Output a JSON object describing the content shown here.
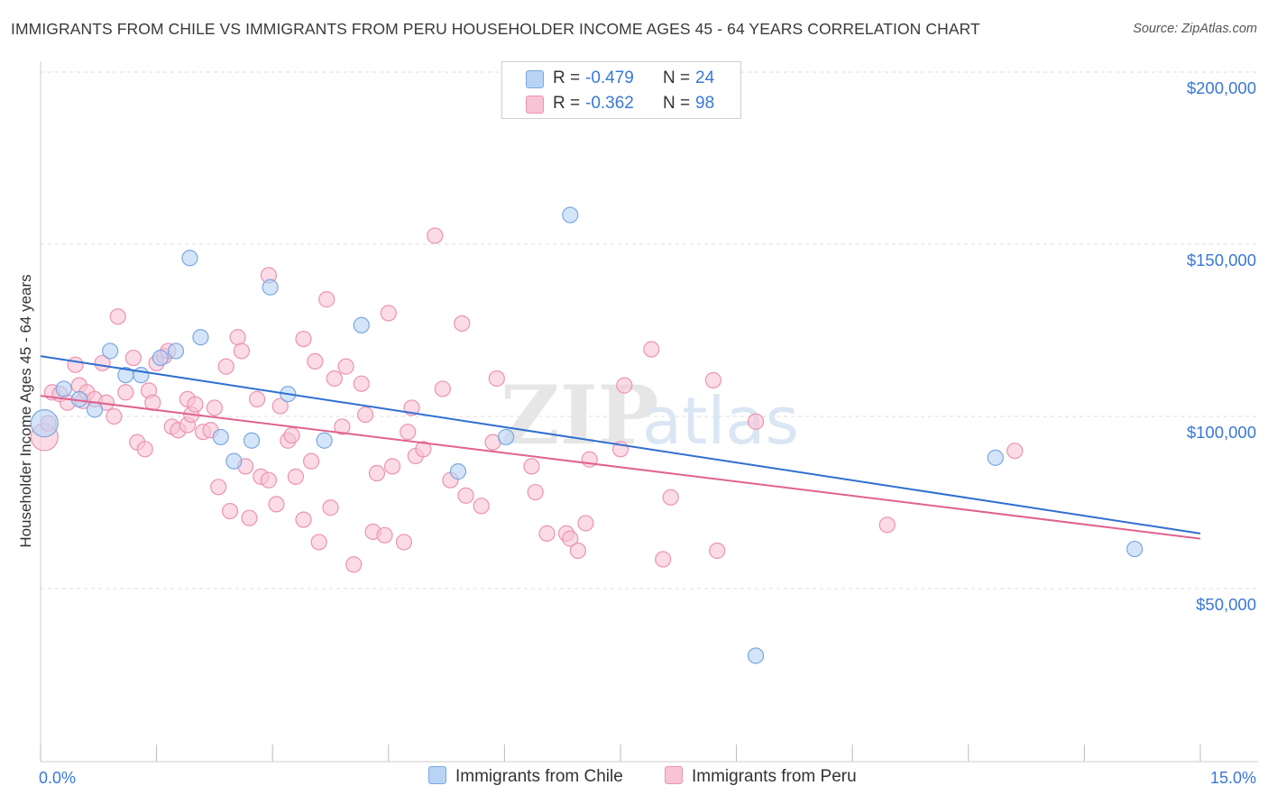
{
  "title": "IMMIGRANTS FROM CHILE VS IMMIGRANTS FROM PERU HOUSEHOLDER INCOME AGES 45 - 64 YEARS CORRELATION CHART",
  "source": "Source: ZipAtlas.com",
  "watermark": {
    "part1": "ZIP",
    "part2": "atlas"
  },
  "colors": {
    "chile_fill": "#b8d3f5",
    "chile_stroke": "#7aa7e0",
    "chile_line": "#2f6fd1",
    "peru_fill": "#f8c3d4",
    "peru_stroke": "#ec93b2",
    "peru_line": "#e0628f",
    "axis_text": "#3a78d4",
    "grid": "#dddddd"
  },
  "legend": {
    "chile": {
      "r_label": "R =",
      "r_value": "-0.479",
      "n_label": "N =",
      "n_value": "24"
    },
    "peru": {
      "r_label": "R =",
      "r_value": "-0.362",
      "n_label": "N =",
      "n_value": "98"
    }
  },
  "chart_data": {
    "type": "scatter",
    "title": "IMMIGRANTS FROM CHILE VS IMMIGRANTS FROM PERU HOUSEHOLDER INCOME AGES 45 - 64 YEARS CORRELATION CHART",
    "xlabel": "",
    "ylabel": "Householder Income Ages 45 - 64 years",
    "xlim": [
      0,
      15
    ],
    "ylim": [
      5000,
      215000
    ],
    "x_tick_labels": [
      "0.0%",
      "15.0%"
    ],
    "y_ticks": [
      50000,
      100000,
      150000,
      200000
    ],
    "y_tick_labels": [
      "$50,000",
      "$100,000",
      "$150,000",
      "$200,000"
    ],
    "grid": true,
    "legend_position": "top-center",
    "series": [
      {
        "name": "Immigrants from Chile",
        "r": -0.479,
        "n": 24,
        "trend": {
          "x": [
            0,
            15
          ],
          "y": [
            117500,
            66000
          ]
        },
        "points": [
          {
            "x": 0.05,
            "y": 98000,
            "big": true
          },
          {
            "x": 0.3,
            "y": 108000
          },
          {
            "x": 0.5,
            "y": 105000
          },
          {
            "x": 0.7,
            "y": 102000
          },
          {
            "x": 0.9,
            "y": 119000
          },
          {
            "x": 1.1,
            "y": 112000
          },
          {
            "x": 1.3,
            "y": 112000
          },
          {
            "x": 1.55,
            "y": 117000
          },
          {
            "x": 1.75,
            "y": 119000
          },
          {
            "x": 1.93,
            "y": 146000
          },
          {
            "x": 2.07,
            "y": 123000
          },
          {
            "x": 2.33,
            "y": 94000
          },
          {
            "x": 2.5,
            "y": 87000
          },
          {
            "x": 2.73,
            "y": 93000
          },
          {
            "x": 2.97,
            "y": 137500
          },
          {
            "x": 3.2,
            "y": 106500
          },
          {
            "x": 3.67,
            "y": 93000
          },
          {
            "x": 4.15,
            "y": 126500
          },
          {
            "x": 5.4,
            "y": 84000
          },
          {
            "x": 6.02,
            "y": 94000
          },
          {
            "x": 6.85,
            "y": 158500
          },
          {
            "x": 9.25,
            "y": 30500
          },
          {
            "x": 12.35,
            "y": 88000
          },
          {
            "x": 14.15,
            "y": 61500
          }
        ]
      },
      {
        "name": "Immigrants from Peru",
        "r": -0.362,
        "n": 98,
        "trend": {
          "x": [
            0,
            15
          ],
          "y": [
            106000,
            64500
          ]
        },
        "points": [
          {
            "x": 0.05,
            "y": 94000,
            "big": true
          },
          {
            "x": 0.1,
            "y": 98000
          },
          {
            "x": 0.15,
            "y": 107000
          },
          {
            "x": 0.25,
            "y": 106500
          },
          {
            "x": 0.35,
            "y": 104000
          },
          {
            "x": 0.45,
            "y": 115000
          },
          {
            "x": 0.5,
            "y": 109000
          },
          {
            "x": 0.55,
            "y": 104500
          },
          {
            "x": 0.6,
            "y": 107000
          },
          {
            "x": 0.7,
            "y": 105000
          },
          {
            "x": 0.8,
            "y": 115500
          },
          {
            "x": 0.85,
            "y": 104000
          },
          {
            "x": 0.95,
            "y": 100000
          },
          {
            "x": 1.0,
            "y": 129000
          },
          {
            "x": 1.1,
            "y": 107000
          },
          {
            "x": 1.2,
            "y": 117000
          },
          {
            "x": 1.25,
            "y": 92500
          },
          {
            "x": 1.35,
            "y": 90500
          },
          {
            "x": 1.4,
            "y": 107500
          },
          {
            "x": 1.45,
            "y": 104000
          },
          {
            "x": 1.5,
            "y": 115500
          },
          {
            "x": 1.6,
            "y": 117500
          },
          {
            "x": 1.65,
            "y": 119000
          },
          {
            "x": 1.7,
            "y": 97000
          },
          {
            "x": 1.78,
            "y": 96000
          },
          {
            "x": 1.9,
            "y": 97500
          },
          {
            "x": 1.9,
            "y": 105000
          },
          {
            "x": 1.95,
            "y": 100500
          },
          {
            "x": 2.0,
            "y": 103500
          },
          {
            "x": 2.1,
            "y": 95500
          },
          {
            "x": 2.2,
            "y": 96000
          },
          {
            "x": 2.25,
            "y": 102500
          },
          {
            "x": 2.3,
            "y": 79500
          },
          {
            "x": 2.4,
            "y": 114500
          },
          {
            "x": 2.45,
            "y": 72500
          },
          {
            "x": 2.55,
            "y": 123000
          },
          {
            "x": 2.6,
            "y": 119000
          },
          {
            "x": 2.65,
            "y": 85500
          },
          {
            "x": 2.7,
            "y": 70500
          },
          {
            "x": 2.8,
            "y": 105000
          },
          {
            "x": 2.85,
            "y": 82500
          },
          {
            "x": 2.95,
            "y": 81500
          },
          {
            "x": 2.95,
            "y": 141000
          },
          {
            "x": 3.05,
            "y": 74500
          },
          {
            "x": 3.1,
            "y": 103000
          },
          {
            "x": 3.2,
            "y": 93000
          },
          {
            "x": 3.25,
            "y": 94500
          },
          {
            "x": 3.3,
            "y": 82500
          },
          {
            "x": 3.4,
            "y": 122500
          },
          {
            "x": 3.4,
            "y": 70000
          },
          {
            "x": 3.5,
            "y": 87000
          },
          {
            "x": 3.55,
            "y": 116000
          },
          {
            "x": 3.6,
            "y": 63500
          },
          {
            "x": 3.7,
            "y": 134000
          },
          {
            "x": 3.75,
            "y": 73500
          },
          {
            "x": 3.8,
            "y": 111000
          },
          {
            "x": 3.9,
            "y": 97000
          },
          {
            "x": 3.95,
            "y": 114500
          },
          {
            "x": 4.05,
            "y": 57000
          },
          {
            "x": 4.15,
            "y": 109500
          },
          {
            "x": 4.2,
            "y": 100500
          },
          {
            "x": 4.3,
            "y": 66500
          },
          {
            "x": 4.35,
            "y": 83500
          },
          {
            "x": 4.45,
            "y": 65500
          },
          {
            "x": 4.5,
            "y": 130000
          },
          {
            "x": 4.55,
            "y": 85500
          },
          {
            "x": 4.7,
            "y": 63500
          },
          {
            "x": 4.75,
            "y": 95500
          },
          {
            "x": 4.8,
            "y": 102500
          },
          {
            "x": 4.85,
            "y": 88500
          },
          {
            "x": 4.95,
            "y": 90500
          },
          {
            "x": 5.1,
            "y": 152500
          },
          {
            "x": 5.2,
            "y": 108000
          },
          {
            "x": 5.3,
            "y": 81500
          },
          {
            "x": 5.45,
            "y": 127000
          },
          {
            "x": 5.5,
            "y": 77000
          },
          {
            "x": 5.7,
            "y": 74000
          },
          {
            "x": 5.85,
            "y": 92500
          },
          {
            "x": 5.9,
            "y": 111000
          },
          {
            "x": 6.35,
            "y": 85500
          },
          {
            "x": 6.4,
            "y": 78000
          },
          {
            "x": 6.55,
            "y": 66000
          },
          {
            "x": 6.8,
            "y": 66000
          },
          {
            "x": 6.85,
            "y": 64500
          },
          {
            "x": 6.95,
            "y": 61000
          },
          {
            "x": 7.05,
            "y": 69000
          },
          {
            "x": 7.1,
            "y": 87500
          },
          {
            "x": 7.5,
            "y": 90500
          },
          {
            "x": 7.55,
            "y": 109000
          },
          {
            "x": 7.9,
            "y": 119500
          },
          {
            "x": 8.05,
            "y": 58500
          },
          {
            "x": 8.15,
            "y": 76500
          },
          {
            "x": 8.7,
            "y": 110500
          },
          {
            "x": 8.75,
            "y": 61000
          },
          {
            "x": 9.25,
            "y": 98500
          },
          {
            "x": 10.95,
            "y": 68500
          },
          {
            "x": 12.6,
            "y": 90000
          }
        ]
      }
    ]
  }
}
